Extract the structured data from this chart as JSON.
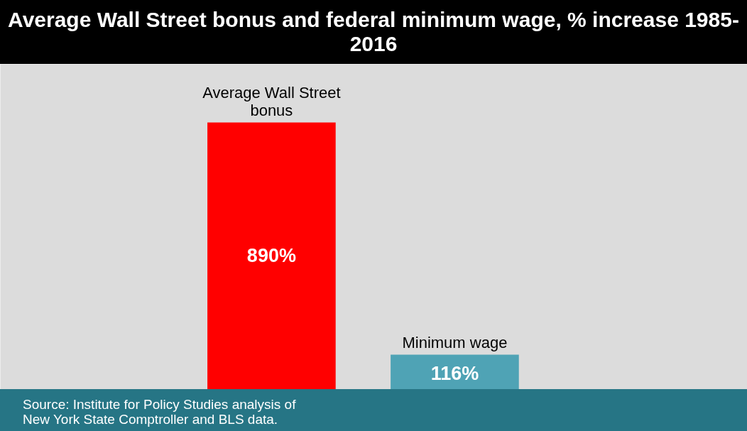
{
  "chart_data": {
    "type": "bar",
    "title": "Average Wall Street bonus and federal minimum wage, % increase 1985-2016",
    "categories": [
      "Average Wall Street bonus",
      "Minimum wage"
    ],
    "values": [
      890,
      116
    ],
    "colors": [
      "#ff0000",
      "#4fa3b5"
    ],
    "value_labels": [
      "890%",
      "116%"
    ],
    "grid": false,
    "annotations": [
      "Source: Institute for Policy Studies analysis of New York State Comptroller and BLS data."
    ]
  }
}
